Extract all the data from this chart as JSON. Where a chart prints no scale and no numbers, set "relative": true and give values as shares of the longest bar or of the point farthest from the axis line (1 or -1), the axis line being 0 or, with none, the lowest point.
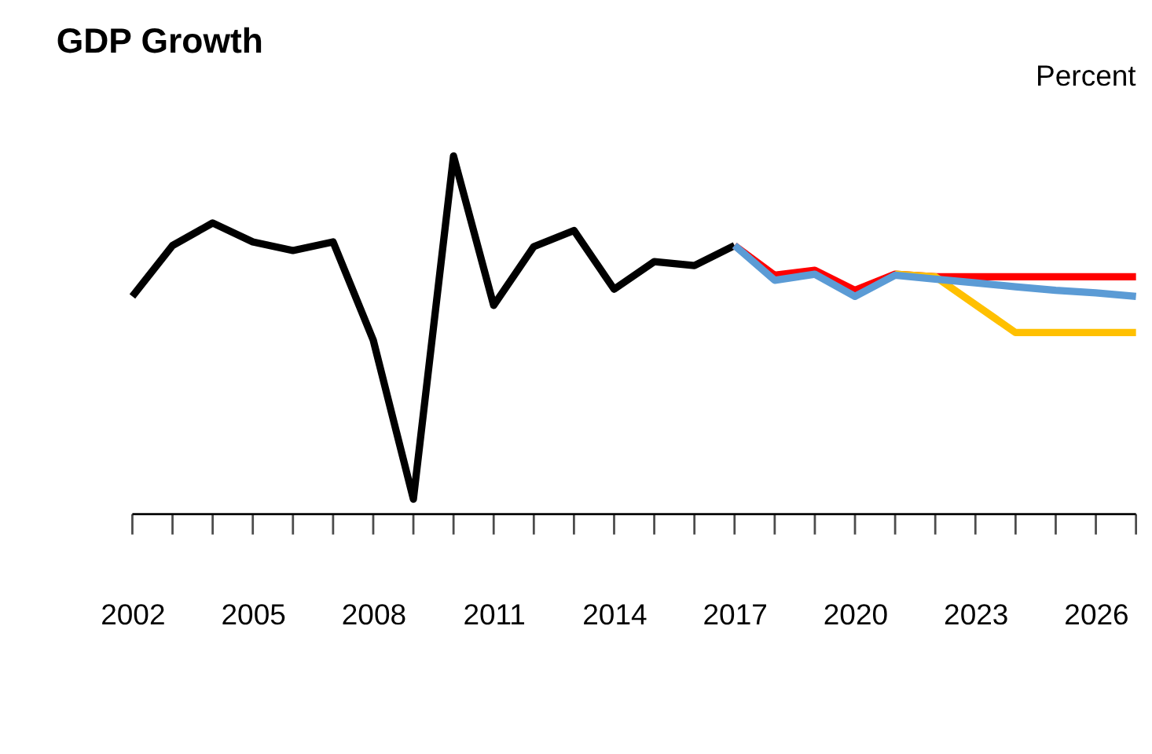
{
  "chart_data": {
    "type": "line",
    "title": "GDP Growth",
    "ylabel": "Percent",
    "relative": true,
    "marker": "none",
    "line_style": "solid",
    "xlim": [
      2002,
      2027
    ],
    "xticks": [
      2002,
      {
        "value": 2003,
        "label": null
      },
      {
        "value": 2004,
        "label": null
      },
      2005,
      {
        "value": 2006,
        "label": null
      },
      {
        "value": 2007,
        "label": null
      },
      2008,
      {
        "value": 2009,
        "label": null
      },
      {
        "value": 2010,
        "label": null
      },
      2011,
      {
        "value": 2012,
        "label": null
      },
      {
        "value": 2013,
        "label": null
      },
      2014,
      {
        "value": 2015,
        "label": null
      },
      {
        "value": 2016,
        "label": null
      },
      2017,
      {
        "value": 2018,
        "label": null
      },
      {
        "value": 2019,
        "label": null
      },
      2020,
      {
        "value": 2021,
        "label": null
      },
      {
        "value": 2022,
        "label": null
      },
      2023,
      {
        "value": 2024,
        "label": null
      },
      {
        "value": 2025,
        "label": null
      },
      2026,
      {
        "value": 2027,
        "label": null
      }
    ],
    "series": [
      {
        "color": "#000000",
        "x": [
          2002,
          2003,
          2004,
          2005,
          2006,
          2007,
          2008,
          2009,
          2010,
          2011,
          2012,
          2013,
          2014,
          2015,
          2016,
          2017
        ],
        "values": [
          0.608,
          0.75,
          0.813,
          0.76,
          0.736,
          0.76,
          0.486,
          0.042,
          1,
          0.583,
          0.747,
          0.792,
          0.628,
          0.705,
          0.694,
          0.75
        ]
      },
      {
        "color": "#ff0000",
        "x": [
          2017,
          2018,
          2019,
          2020,
          2021,
          2022,
          2023,
          2024,
          2025,
          2026,
          2027
        ],
        "values": [
          0.75,
          0.667,
          0.681,
          0.625,
          0.67,
          0.663,
          0.663,
          0.663,
          0.663,
          0.663,
          0.663
        ]
      },
      {
        "color": "#ffc000",
        "x": [
          2021,
          2022,
          2023,
          2024,
          2025,
          2026,
          2027
        ],
        "values": [
          0.67,
          0.663,
          0.585,
          0.507,
          0.507,
          0.507,
          0.507
        ]
      },
      {
        "color": "#5b9bd5",
        "x": [
          2017,
          2018,
          2019,
          2020,
          2021,
          2022,
          2023,
          2024,
          2025,
          2026,
          2027
        ],
        "values": [
          0.75,
          0.653,
          0.67,
          0.608,
          0.667,
          0.656,
          0.646,
          0.635,
          0.625,
          0.618,
          0.608
        ]
      }
    ]
  }
}
